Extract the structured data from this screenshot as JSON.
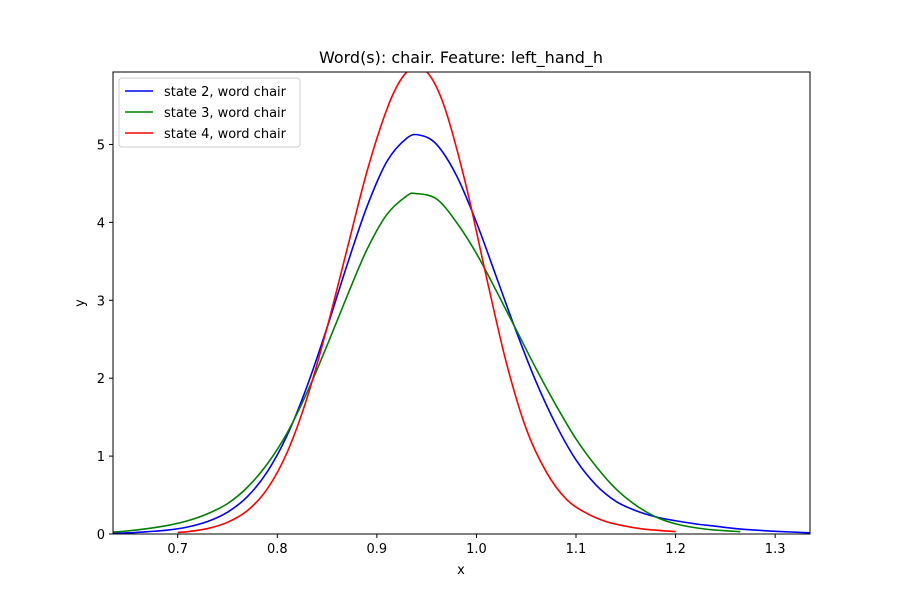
{
  "chart_data": {
    "type": "line",
    "title": "Word(s): chair. Feature: left_hand_h",
    "xlabel": "x",
    "ylabel": "y",
    "xlim": [
      0.635,
      1.335
    ],
    "ylim": [
      0,
      5.93
    ],
    "xticks": [
      "0.7",
      "0.8",
      "0.9",
      "1.0",
      "1.1",
      "1.2",
      "1.3"
    ],
    "yticks": [
      "0",
      "1",
      "2",
      "3",
      "4",
      "5"
    ],
    "legend_position": "upper-left",
    "grid": false,
    "series": [
      {
        "name": "state 2, word chair",
        "color": "#0000ff",
        "x": [
          0.635,
          0.65,
          0.67,
          0.69,
          0.71,
          0.73,
          0.75,
          0.77,
          0.79,
          0.81,
          0.83,
          0.85,
          0.87,
          0.89,
          0.91,
          0.93,
          0.943,
          0.96,
          0.98,
          1.0,
          1.02,
          1.04,
          1.06,
          1.08,
          1.1,
          1.12,
          1.14,
          1.16,
          1.18,
          1.2,
          1.22,
          1.24,
          1.26,
          1.28,
          1.3,
          1.335
        ],
        "y": [
          0.01,
          0.015,
          0.03,
          0.05,
          0.09,
          0.16,
          0.28,
          0.48,
          0.8,
          1.27,
          1.9,
          2.65,
          3.45,
          4.2,
          4.78,
          5.08,
          5.12,
          5.0,
          4.6,
          4.0,
          3.3,
          2.6,
          1.95,
          1.4,
          0.95,
          0.63,
          0.42,
          0.3,
          0.22,
          0.17,
          0.13,
          0.1,
          0.07,
          0.05,
          0.035,
          0.015
        ]
      },
      {
        "name": "state 3, word chair",
        "color": "#008000",
        "x": [
          0.635,
          0.65,
          0.67,
          0.69,
          0.71,
          0.73,
          0.75,
          0.77,
          0.79,
          0.81,
          0.83,
          0.85,
          0.87,
          0.89,
          0.91,
          0.93,
          0.939,
          0.96,
          0.98,
          1.0,
          1.02,
          1.04,
          1.06,
          1.08,
          1.1,
          1.12,
          1.14,
          1.16,
          1.18,
          1.2,
          1.22,
          1.24,
          1.265
        ],
        "y": [
          0.025,
          0.04,
          0.07,
          0.11,
          0.17,
          0.26,
          0.39,
          0.6,
          0.9,
          1.3,
          1.82,
          2.42,
          3.05,
          3.65,
          4.1,
          4.34,
          4.37,
          4.3,
          4.0,
          3.6,
          3.12,
          2.62,
          2.12,
          1.65,
          1.22,
          0.87,
          0.58,
          0.37,
          0.22,
          0.13,
          0.08,
          0.05,
          0.03
        ]
      },
      {
        "name": "state 4, word chair",
        "color": "#ff0000",
        "x": [
          0.7,
          0.71,
          0.73,
          0.75,
          0.77,
          0.79,
          0.81,
          0.83,
          0.85,
          0.87,
          0.89,
          0.91,
          0.925,
          0.94,
          0.955,
          0.97,
          0.99,
          1.01,
          1.03,
          1.05,
          1.07,
          1.09,
          1.11,
          1.13,
          1.15,
          1.17,
          1.2
        ],
        "y": [
          0.02,
          0.03,
          0.07,
          0.15,
          0.3,
          0.58,
          1.05,
          1.75,
          2.65,
          3.65,
          4.65,
          5.45,
          5.85,
          6.0,
          5.85,
          5.4,
          4.45,
          3.3,
          2.2,
          1.35,
          0.8,
          0.45,
          0.27,
          0.16,
          0.1,
          0.06,
          0.03
        ]
      }
    ]
  }
}
